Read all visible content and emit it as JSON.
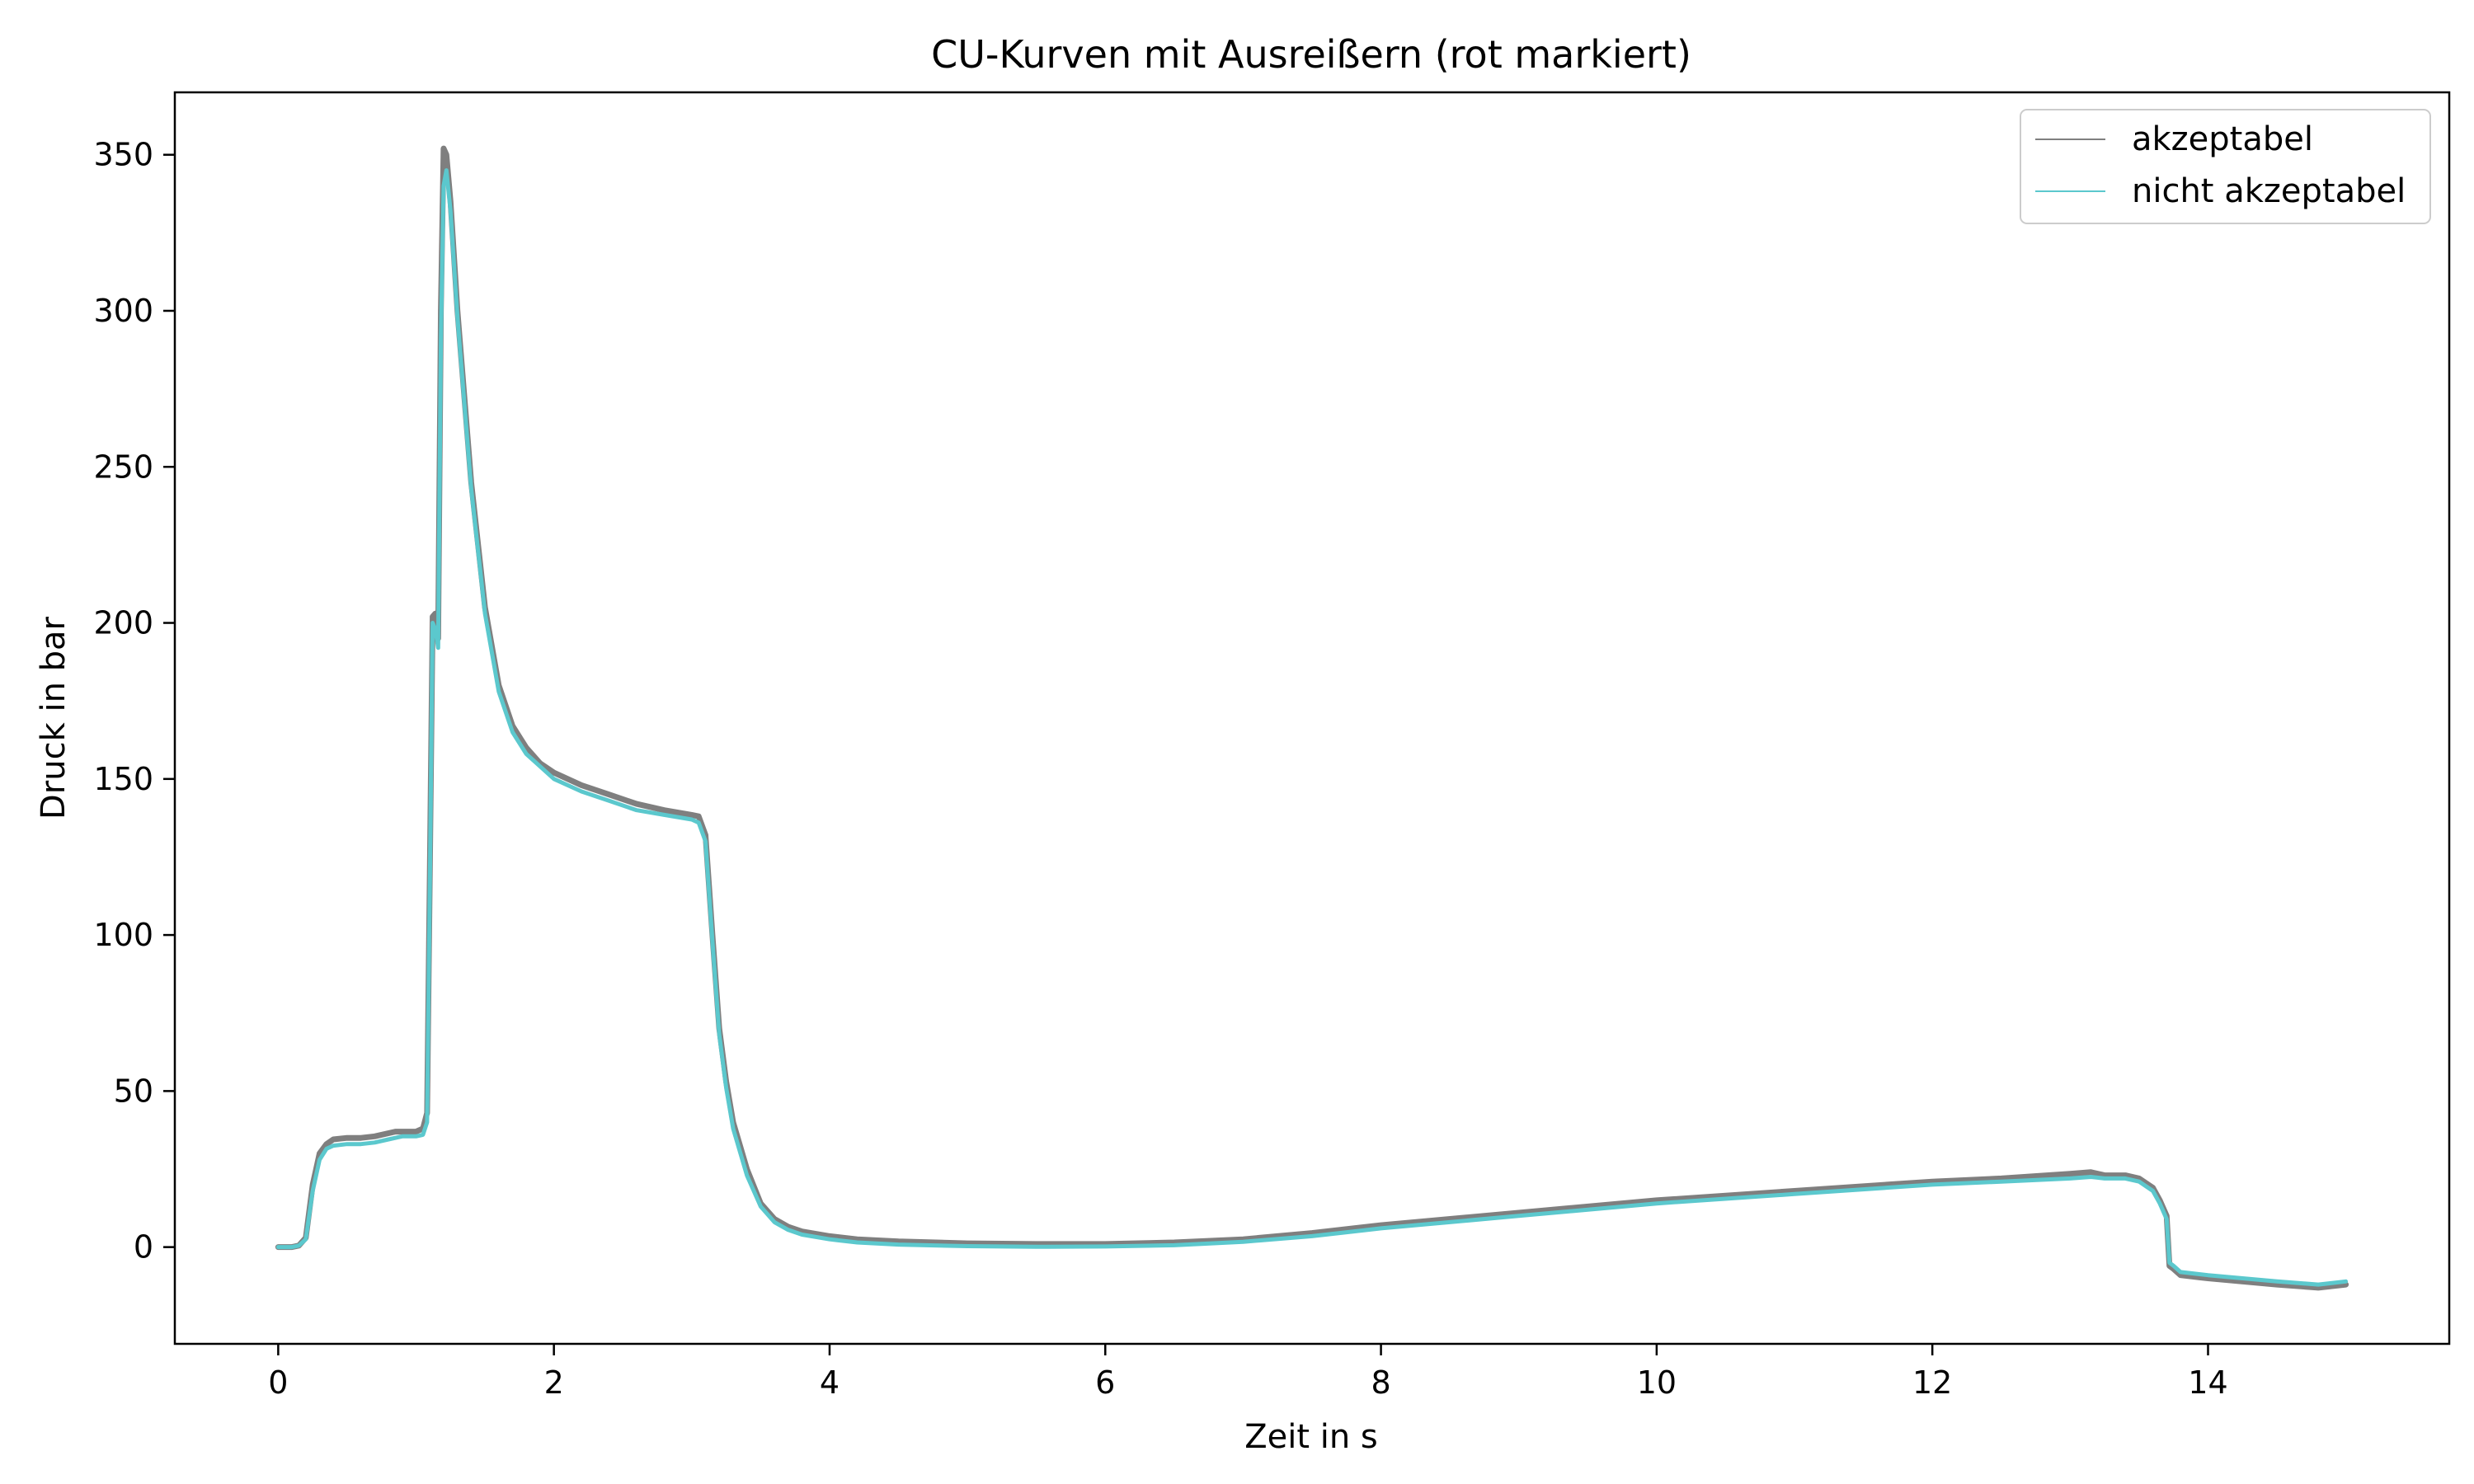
{
  "chart_data": {
    "type": "line",
    "title": "CU-Kurven mit Ausreißern (rot markiert)",
    "xlabel": "Zeit in s",
    "ylabel": "Druck in bar",
    "xlim": [
      -0.75,
      15.75
    ],
    "ylim": [
      -31,
      370
    ],
    "x_ticks": [
      0,
      2,
      4,
      6,
      8,
      10,
      12,
      14
    ],
    "y_ticks": [
      0,
      50,
      100,
      150,
      200,
      250,
      300,
      350
    ],
    "grid": false,
    "legend_position": "top-right",
    "series": [
      {
        "name": "akzeptabel",
        "color": "#7f7f7f",
        "x": [
          0,
          0.1,
          0.15,
          0.2,
          0.25,
          0.3,
          0.35,
          0.4,
          0.5,
          0.6,
          0.7,
          0.8,
          0.85,
          0.9,
          1.0,
          1.05,
          1.08,
          1.1,
          1.12,
          1.14,
          1.16,
          1.18,
          1.2,
          1.22,
          1.25,
          1.3,
          1.4,
          1.5,
          1.6,
          1.7,
          1.8,
          1.9,
          2.0,
          2.2,
          2.4,
          2.6,
          2.8,
          3.0,
          3.05,
          3.1,
          3.15,
          3.2,
          3.25,
          3.3,
          3.4,
          3.5,
          3.6,
          3.7,
          3.8,
          4.0,
          4.2,
          4.5,
          5.0,
          5.5,
          6.0,
          6.5,
          7.0,
          7.5,
          8.0,
          9.0,
          10.0,
          11.0,
          12.0,
          12.5,
          13.0,
          13.15,
          13.25,
          13.4,
          13.5,
          13.6,
          13.65,
          13.7,
          13.72,
          13.75,
          13.8,
          14.0,
          14.5,
          14.8,
          15.0
        ],
        "values": [
          0,
          0,
          0.5,
          3,
          20,
          30,
          33,
          34.5,
          35,
          35,
          35.5,
          36.5,
          37,
          37,
          37,
          38,
          43,
          120,
          202,
          203,
          195,
          300,
          352,
          350,
          335,
          300,
          245,
          205,
          180,
          167,
          160,
          155,
          152,
          148,
          145,
          142,
          140,
          138.5,
          138,
          132,
          100,
          70,
          53,
          40,
          25,
          14,
          9,
          6.5,
          5,
          3.5,
          2.5,
          1.8,
          1.2,
          1,
          1,
          1.5,
          2.5,
          4.5,
          7,
          11,
          15,
          18,
          21,
          22,
          23.5,
          24,
          23,
          23,
          22,
          19,
          15,
          10,
          -6,
          -7,
          -9,
          -10,
          -12,
          -13,
          -12
        ]
      },
      {
        "name": "nicht akzeptabel",
        "color": "#5bc8cd",
        "x": [
          0,
          0.1,
          0.15,
          0.2,
          0.25,
          0.3,
          0.35,
          0.4,
          0.5,
          0.6,
          0.7,
          0.8,
          0.85,
          0.9,
          1.0,
          1.05,
          1.08,
          1.1,
          1.12,
          1.14,
          1.16,
          1.18,
          1.2,
          1.22,
          1.25,
          1.3,
          1.4,
          1.5,
          1.6,
          1.7,
          1.8,
          1.9,
          2.0,
          2.2,
          2.4,
          2.6,
          2.8,
          3.0,
          3.05,
          3.1,
          3.15,
          3.2,
          3.25,
          3.3,
          3.4,
          3.5,
          3.6,
          3.7,
          3.8,
          4.0,
          4.2,
          4.5,
          5.0,
          5.5,
          6.0,
          6.5,
          7.0,
          7.5,
          8.0,
          9.0,
          10.0,
          11.0,
          12.0,
          12.5,
          13.0,
          13.15,
          13.25,
          13.4,
          13.5,
          13.6,
          13.65,
          13.7,
          13.72,
          13.75,
          13.8,
          14.0,
          14.5,
          14.8,
          15.0
        ],
        "values": [
          0,
          0,
          0.5,
          2.5,
          18,
          28,
          31.5,
          32.5,
          33,
          33,
          33.5,
          34.5,
          35,
          35.5,
          35.5,
          36,
          40,
          115,
          200,
          198,
          192,
          290,
          340,
          345,
          332,
          298,
          243,
          203,
          178,
          165,
          158,
          154,
          150,
          146,
          143,
          140,
          138.5,
          137,
          136,
          130,
          98,
          68,
          51,
          38,
          23,
          13,
          8,
          5.5,
          4,
          2.5,
          1.5,
          0.8,
          0.3,
          0.1,
          0.2,
          0.6,
          1.7,
          3.5,
          6,
          10,
          14,
          17,
          20,
          21,
          22,
          22.5,
          22,
          22,
          21,
          18,
          14,
          9,
          -5,
          -6,
          -8,
          -9,
          -11,
          -12,
          -11
        ]
      }
    ]
  }
}
